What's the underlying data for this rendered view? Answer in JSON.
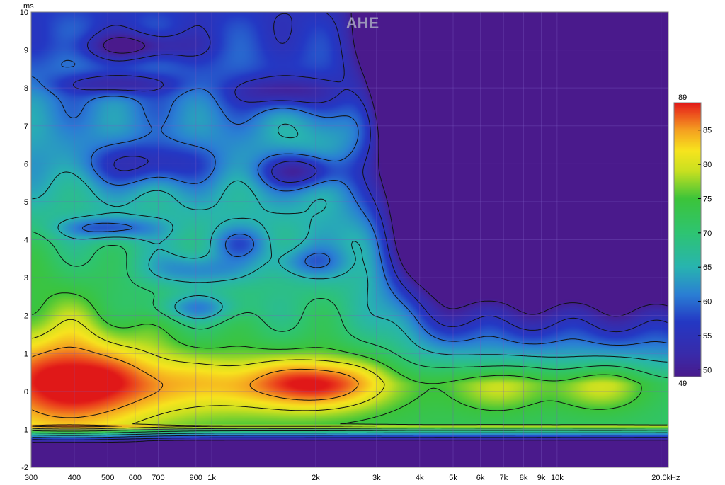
{
  "chart_data": {
    "type": "heatmap",
    "title": "AHE",
    "xlabel": "Hz",
    "ylabel": "ms",
    "x_scale": "log",
    "xlim": [
      300,
      21000
    ],
    "ylim": [
      -2,
      10
    ],
    "x_ticks": [
      {
        "v": 300,
        "label": "300"
      },
      {
        "v": 400,
        "label": "400"
      },
      {
        "v": 500,
        "label": "500"
      },
      {
        "v": 600,
        "label": "600"
      },
      {
        "v": 700,
        "label": "700"
      },
      {
        "v": 900,
        "label": "900"
      },
      {
        "v": 1000,
        "label": "1k"
      },
      {
        "v": 2000,
        "label": "2k"
      },
      {
        "v": 3000,
        "label": "3k"
      },
      {
        "v": 4000,
        "label": "4k"
      },
      {
        "v": 5000,
        "label": "5k"
      },
      {
        "v": 6000,
        "label": "6k"
      },
      {
        "v": 7000,
        "label": "7k"
      },
      {
        "v": 8000,
        "label": "8k"
      },
      {
        "v": 9000,
        "label": "9k"
      },
      {
        "v": 10000,
        "label": "10k"
      },
      {
        "v": 20000,
        "label": "20.0k"
      }
    ],
    "x_unit": "Hz",
    "y_ticks": [
      -2,
      -1,
      0,
      1,
      2,
      3,
      4,
      5,
      6,
      7,
      8,
      9,
      10
    ],
    "y_unit": "ms",
    "grid": true,
    "colorbar": {
      "min": 49,
      "max": 89,
      "ticks": [
        50,
        55,
        60,
        65,
        70,
        75,
        80,
        85
      ],
      "min_label": "49",
      "max_label": "89",
      "placement": "right"
    },
    "color_stops": [
      {
        "v": 49,
        "c": "#4a1a8c"
      },
      {
        "v": 52,
        "c": "#3a2aa8"
      },
      {
        "v": 57,
        "c": "#2438c4"
      },
      {
        "v": 61,
        "c": "#2a7fd4"
      },
      {
        "v": 65,
        "c": "#28b4b0"
      },
      {
        "v": 70,
        "c": "#2ec472"
      },
      {
        "v": 75,
        "c": "#3cc43a"
      },
      {
        "v": 79,
        "c": "#c8e020"
      },
      {
        "v": 82,
        "c": "#f7e41e"
      },
      {
        "v": 85,
        "c": "#f5a020"
      },
      {
        "v": 88,
        "c": "#ea3a1c"
      },
      {
        "v": 89,
        "c": "#e01818"
      }
    ],
    "features": [
      {
        "f": 380,
        "t": 0.3,
        "sf": 0.55,
        "st": 1.1,
        "a": 14
      },
      {
        "f": 2100,
        "t": 0.2,
        "sf": 0.45,
        "st": 0.5,
        "a": 12
      },
      {
        "f": 1000,
        "t": 0.2,
        "sf": 0.9,
        "st": 0.6,
        "a": 8
      },
      {
        "f": 6800,
        "t": 0.1,
        "sf": 0.3,
        "st": 0.45,
        "a": 7
      },
      {
        "f": 13500,
        "t": 0.1,
        "sf": 0.3,
        "st": 0.45,
        "a": 8
      },
      {
        "f": 310,
        "t": 3.0,
        "sf": 0.5,
        "st": 1.0,
        "a": 3
      },
      {
        "f": 2100,
        "t": 6.8,
        "sf": 0.4,
        "st": 0.5,
        "a": 4
      },
      {
        "f": 650,
        "t": 6.0,
        "sf": 0.4,
        "st": 0.4,
        "a": -10
      },
      {
        "f": 1800,
        "t": 5.8,
        "sf": 0.25,
        "st": 0.3,
        "a": -12
      },
      {
        "f": 600,
        "t": 9.1,
        "sf": 0.35,
        "st": 0.25,
        "a": -10
      },
      {
        "f": 530,
        "t": 8.1,
        "sf": 0.35,
        "st": 0.2,
        "a": -9
      },
      {
        "f": 1600,
        "t": 7.9,
        "sf": 0.3,
        "st": 0.3,
        "a": -10
      },
      {
        "f": 500,
        "t": 4.3,
        "sf": 0.3,
        "st": 0.2,
        "a": -10
      },
      {
        "f": 900,
        "t": 3.2,
        "sf": 0.3,
        "st": 0.3,
        "a": -8
      },
      {
        "f": 1900,
        "t": 3.4,
        "sf": 0.25,
        "st": 0.3,
        "a": -7
      },
      {
        "f": 900,
        "t": 2.2,
        "sf": 0.3,
        "st": 0.25,
        "a": -8
      },
      {
        "f": 1200,
        "t": 3.9,
        "sf": 0.2,
        "st": 0.3,
        "a": -7
      }
    ]
  }
}
